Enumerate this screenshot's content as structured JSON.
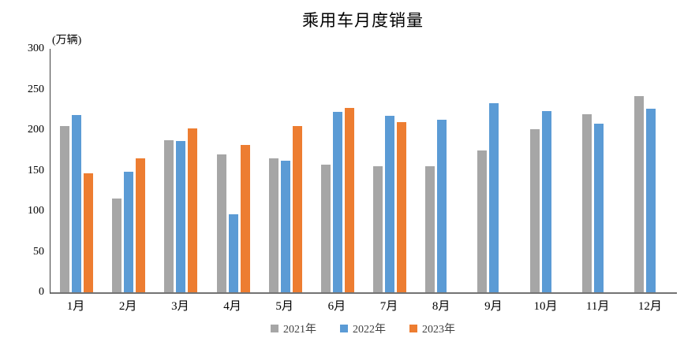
{
  "chart_data": {
    "type": "bar",
    "title": "乘用车月度销量",
    "unit_label": "(万辆)",
    "xlabel": "",
    "ylabel": "万辆",
    "categories": [
      "1月",
      "2月",
      "3月",
      "4月",
      "5月",
      "6月",
      "7月",
      "8月",
      "9月",
      "10月",
      "11月",
      "12月"
    ],
    "series": [
      {
        "name": "2021年",
        "color": "#A6A6A6",
        "values": [
          204.5,
          115.6,
          187.4,
          170.4,
          164.6,
          156.9,
          155.1,
          155.2,
          175.1,
          200.7,
          219.2,
          242.2
        ]
      },
      {
        "name": "2022年",
        "color": "#5B9BD5",
        "values": [
          218.6,
          148.7,
          186.4,
          96.5,
          162.3,
          222.2,
          217.4,
          212.5,
          233.2,
          223.1,
          207.5,
          226.3
        ]
      },
      {
        "name": "2023年",
        "color": "#ED7D31",
        "values": [
          146.9,
          165.3,
          201.7,
          181.1,
          205.1,
          226.8,
          210.0,
          null,
          null,
          null,
          null,
          null
        ]
      }
    ],
    "ylim": [
      0,
      300
    ],
    "yticks": [
      0,
      50,
      100,
      150,
      200,
      250,
      300
    ],
    "grid": false,
    "legend_position": "bottom"
  }
}
